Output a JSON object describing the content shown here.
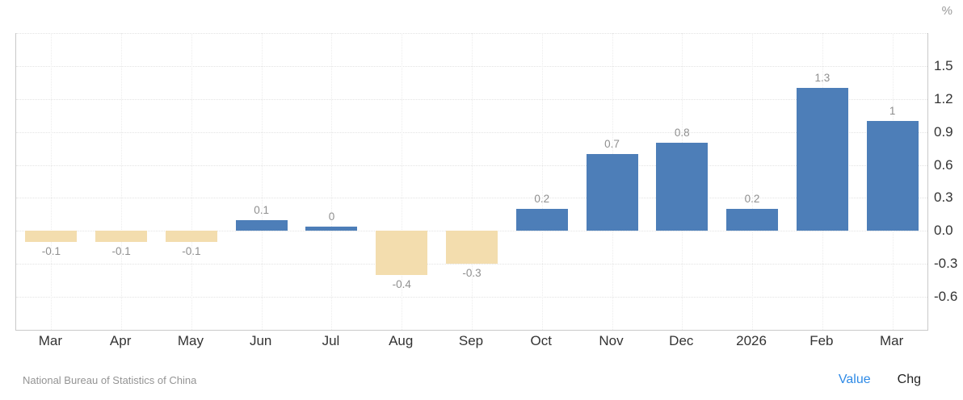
{
  "chart_data": {
    "type": "bar",
    "title": "",
    "unit": "%",
    "categories": [
      "Mar",
      "Apr",
      "May",
      "Jun",
      "Jul",
      "Aug",
      "Sep",
      "Oct",
      "Nov",
      "Dec",
      "2026",
      "Feb",
      "Mar"
    ],
    "values": [
      -0.1,
      -0.1,
      -0.1,
      0.1,
      0,
      -0.4,
      -0.3,
      0.2,
      0.7,
      0.8,
      0.2,
      1.3,
      1
    ],
    "value_labels": [
      "-0.1",
      "-0.1",
      "-0.1",
      "0.1",
      "0",
      "-0.4",
      "-0.3",
      "0.2",
      "0.7",
      "0.8",
      "0.2",
      "1.3",
      "1"
    ],
    "ylim": [
      -0.9,
      1.8
    ],
    "ytick_step": 0.3,
    "ytick_labels": [
      "1.5",
      "1.2",
      "0.9",
      "0.6",
      "0.3",
      "0.0",
      "-0.3",
      "-0.6"
    ],
    "grid": true,
    "legend_position": "none",
    "colors": {
      "positive_bar": "#4d7eb8",
      "negative_bar": "#f3ddae",
      "value_label": "#8f8f8f",
      "tick_label": "#333333",
      "grid_line": "#e7e7e7",
      "axis_line": "#c9c9c9",
      "unit_label": "#999999"
    }
  },
  "footer": {
    "source": "National Bureau of Statistics of China",
    "links": [
      {
        "label": "Value",
        "active": true,
        "color": "#2e8ae6"
      },
      {
        "label": "Chg",
        "active": false,
        "color": "#222222"
      }
    ]
  }
}
